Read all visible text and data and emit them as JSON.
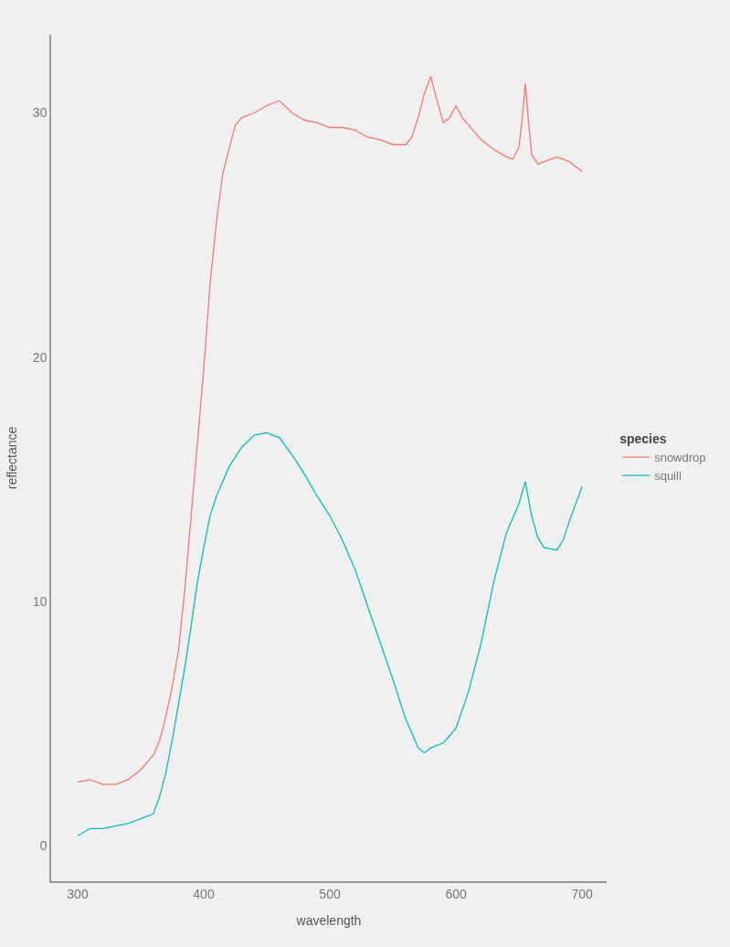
{
  "chart_data": {
    "type": "line",
    "xlabel": "wavelength",
    "ylabel": "reflectance",
    "legend_title": "species",
    "legend": "right",
    "grid": false,
    "xlim": [
      279,
      719.5
    ],
    "ylim": [
      -1.46,
      33.2
    ],
    "xticks": [
      300,
      400,
      500,
      600,
      700
    ],
    "yticks": [
      0,
      10,
      20,
      30
    ],
    "series": [
      {
        "name": "snowdrop",
        "color": "#f8766d",
        "x": [
          300,
          310,
          320,
          330,
          340,
          350,
          360,
          365,
          370,
          375,
          380,
          385,
          390,
          395,
          400,
          405,
          410,
          415,
          420,
          425,
          430,
          440,
          450,
          460,
          470,
          480,
          490,
          500,
          510,
          520,
          530,
          540,
          550,
          560,
          565,
          570,
          575,
          580,
          585,
          590,
          595,
          600,
          605,
          610,
          620,
          630,
          640,
          645,
          650,
          653,
          655,
          657,
          660,
          665,
          670,
          680,
          690,
          700
        ],
        "values": [
          2.6,
          2.7,
          2.5,
          2.5,
          2.7,
          3.1,
          3.7,
          4.3,
          5.3,
          6.5,
          8.0,
          10.5,
          13.5,
          16.5,
          19.5,
          23,
          25.5,
          27.5,
          28.5,
          29.5,
          29.8,
          30.0,
          30.3,
          30.5,
          30.0,
          29.7,
          29.6,
          29.4,
          29.4,
          29.3,
          29.0,
          28.9,
          28.7,
          28.7,
          29.0,
          29.8,
          30.8,
          31.5,
          30.5,
          29.6,
          29.8,
          30.3,
          29.8,
          29.5,
          28.9,
          28.5,
          28.2,
          28.1,
          28.6,
          30,
          31.2,
          30,
          28.3,
          27.9,
          28.0,
          28.2,
          28.0,
          27.6
        ]
      },
      {
        "name": "squill",
        "color": "#00bfc4",
        "x": [
          300,
          310,
          320,
          330,
          340,
          350,
          360,
          365,
          370,
          375,
          380,
          385,
          390,
          395,
          400,
          405,
          410,
          420,
          430,
          440,
          450,
          460,
          470,
          480,
          490,
          500,
          510,
          520,
          530,
          540,
          550,
          560,
          570,
          575,
          580,
          590,
          600,
          610,
          620,
          630,
          640,
          650,
          655,
          660,
          665,
          670,
          680,
          685,
          690,
          700
        ],
        "values": [
          0.4,
          0.7,
          0.7,
          0.8,
          0.9,
          1.1,
          1.3,
          2.0,
          3.0,
          4.3,
          5.8,
          7.3,
          9.0,
          10.8,
          12.2,
          13.5,
          14.3,
          15.5,
          16.3,
          16.8,
          16.9,
          16.7,
          16.0,
          15.2,
          14.3,
          13.5,
          12.5,
          11.3,
          9.8,
          8.3,
          6.8,
          5.2,
          4.0,
          3.8,
          4.0,
          4.2,
          4.8,
          6.3,
          8.3,
          10.8,
          12.8,
          14.0,
          14.9,
          13.5,
          12.6,
          12.2,
          12.1,
          12.5,
          13.3,
          14.7
        ]
      }
    ]
  }
}
